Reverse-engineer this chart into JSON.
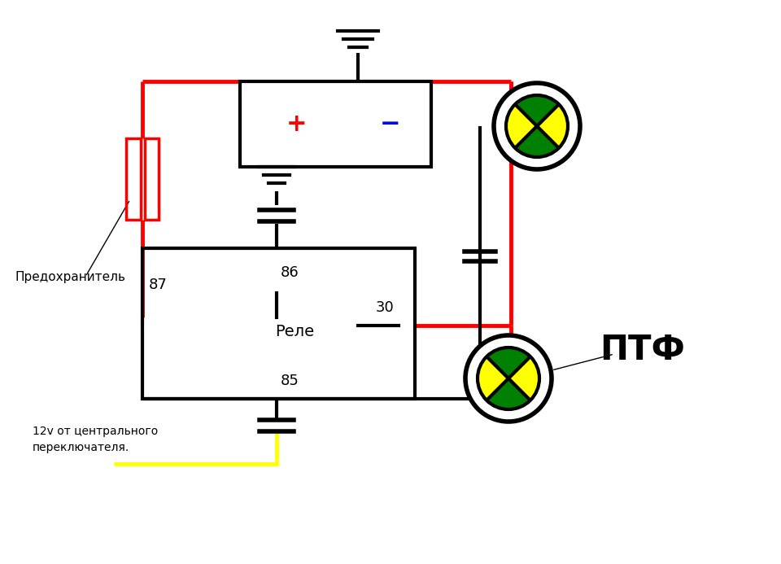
{
  "bg_color": "#ffffff",
  "relay_label": "Реле",
  "label_predohranitel": "Предохранитель",
  "label_12v_line1": "12v от центрального",
  "label_12v_line2": "переключателя.",
  "ptf_label": "ПТФ",
  "plus_label": "+",
  "minus_label": "−"
}
